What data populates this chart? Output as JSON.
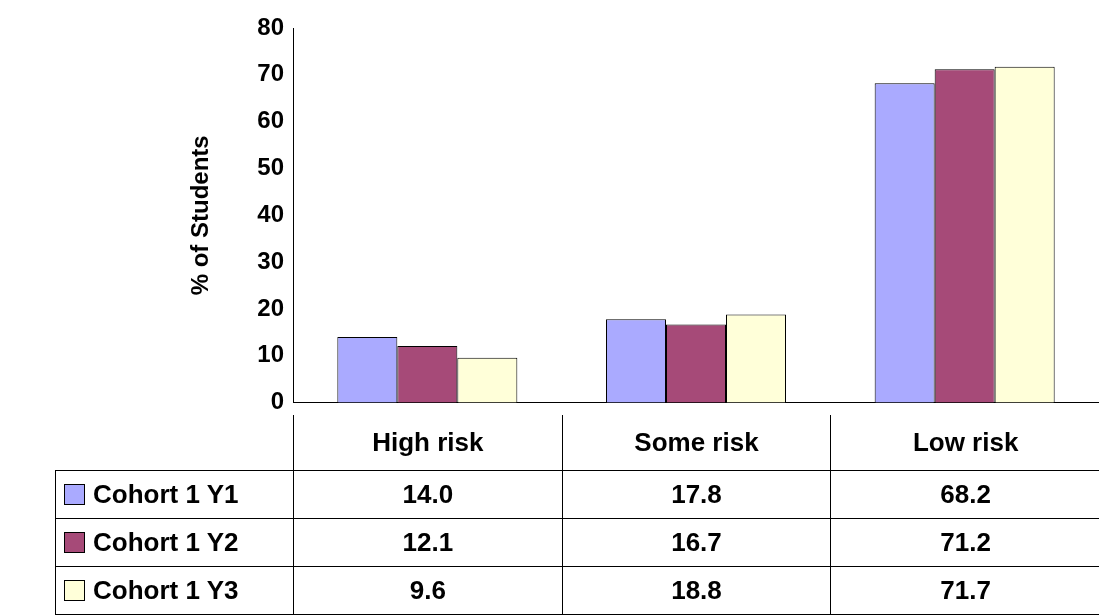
{
  "chart_data": {
    "type": "bar",
    "ylabel": "% of Students",
    "categories": [
      "High risk",
      "Some risk",
      "Low risk"
    ],
    "series": [
      {
        "name": "Cohort 1 Y1",
        "color": "#aaaaff",
        "values": [
          14.0,
          17.8,
          68.2
        ],
        "value_labels": [
          "14.0",
          "17.8",
          "68.2"
        ]
      },
      {
        "name": "Cohort 1 Y2",
        "color": "#a64a78",
        "values": [
          12.1,
          16.7,
          71.2
        ],
        "value_labels": [
          "12.1",
          "16.7",
          "71.2"
        ]
      },
      {
        "name": "Cohort 1 Y3",
        "color": "#ffffd9",
        "values": [
          9.6,
          18.8,
          71.7
        ],
        "value_labels": [
          "9.6",
          "18.8",
          "71.7"
        ]
      }
    ],
    "ylim": [
      0,
      80
    ],
    "yticks": [
      0,
      10,
      20,
      30,
      40,
      50,
      60,
      70,
      80
    ],
    "legend": "bottom"
  }
}
